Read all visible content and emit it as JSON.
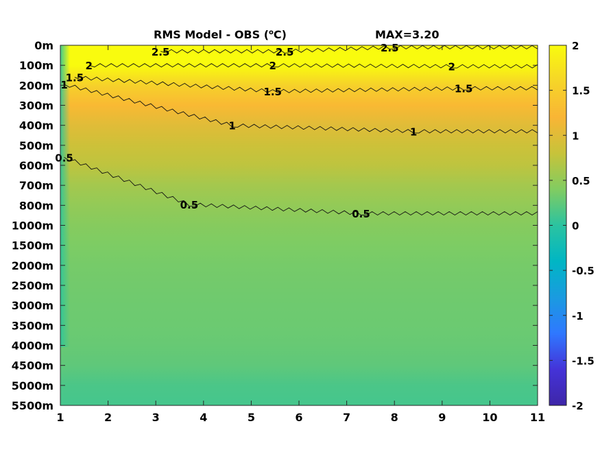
{
  "chart_data": {
    "type": "heatmap",
    "title": {
      "prefix": "RMS Model - OBS (",
      "sup": "o",
      "suffix": "C)"
    },
    "subtitle": "MAX=3.20",
    "x_ticks": [
      "1",
      "2",
      "3",
      "4",
      "5",
      "6",
      "7",
      "8",
      "9",
      "10",
      "11"
    ],
    "xlim": [
      1,
      11
    ],
    "y_ticks": [
      "0m",
      "100m",
      "200m",
      "300m",
      "400m",
      "500m",
      "600m",
      "700m",
      "800m",
      "1000m",
      "1500m",
      "2000m",
      "2500m",
      "3000m",
      "3500m",
      "4000m",
      "4500m",
      "5000m",
      "5500m"
    ],
    "colorbar": {
      "range": [
        -2,
        2
      ],
      "ticks": [
        "2",
        "1.5",
        "1",
        "0.5",
        "0",
        "-0.5",
        "-1",
        "-1.5",
        "-2"
      ],
      "colormap": [
        "#3e26a8",
        "#4433d8",
        "#2f78ff",
        "#1a9be0",
        "#00b6c4",
        "#2bc3a0",
        "#81cc61",
        "#c7c33a",
        "#f9b535",
        "#f6d528",
        "#f9fb0e"
      ]
    },
    "depth_profile": [
      {
        "depth": "0m",
        "value": 2.6
      },
      {
        "depth": "100m",
        "value": 2.1
      },
      {
        "depth": "200m",
        "value": 1.55
      },
      {
        "depth": "300m",
        "value": 1.25
      },
      {
        "depth": "400m",
        "value": 1.0
      },
      {
        "depth": "500m",
        "value": 0.85
      },
      {
        "depth": "600m",
        "value": 0.75
      },
      {
        "depth": "700m",
        "value": 0.6
      },
      {
        "depth": "800m",
        "value": 0.5
      },
      {
        "depth": "1000m",
        "value": 0.43
      },
      {
        "depth": "1500m",
        "value": 0.38
      },
      {
        "depth": "2000m",
        "value": 0.35
      },
      {
        "depth": "2500m",
        "value": 0.33
      },
      {
        "depth": "3000m",
        "value": 0.31
      },
      {
        "depth": "3500m",
        "value": 0.3
      },
      {
        "depth": "4000m",
        "value": 0.28
      },
      {
        "depth": "4500m",
        "value": 0.24
      },
      {
        "depth": "5000m",
        "value": 0.15
      },
      {
        "depth": "5500m",
        "value": 0.12
      }
    ],
    "contours": [
      {
        "level": "2.5",
        "labels": [
          {
            "x": 3.1,
            "depth": 0.3
          },
          {
            "x": 5.7,
            "depth": 0.3
          },
          {
            "x": 7.9,
            "depth": 0.1
          }
        ]
      },
      {
        "level": "2",
        "labels": [
          {
            "x": 1.6,
            "depth": 1.0
          },
          {
            "x": 5.45,
            "depth": 1.0
          },
          {
            "x": 9.2,
            "depth": 1.05
          }
        ]
      },
      {
        "level": "1.5",
        "labels": [
          {
            "x": 1.3,
            "depth": 1.6
          },
          {
            "x": 5.45,
            "depth": 2.3
          },
          {
            "x": 9.45,
            "depth": 2.15
          }
        ]
      },
      {
        "level": "1",
        "labels": [
          {
            "x": 1.08,
            "depth": 1.95
          },
          {
            "x": 4.6,
            "depth": 4.0
          },
          {
            "x": 8.4,
            "depth": 4.3
          }
        ]
      },
      {
        "level": "0.5",
        "labels": [
          {
            "x": 1.08,
            "depth": 5.6
          },
          {
            "x": 3.7,
            "depth": 7.95
          },
          {
            "x": 7.3,
            "depth": 8.4
          }
        ]
      }
    ]
  }
}
